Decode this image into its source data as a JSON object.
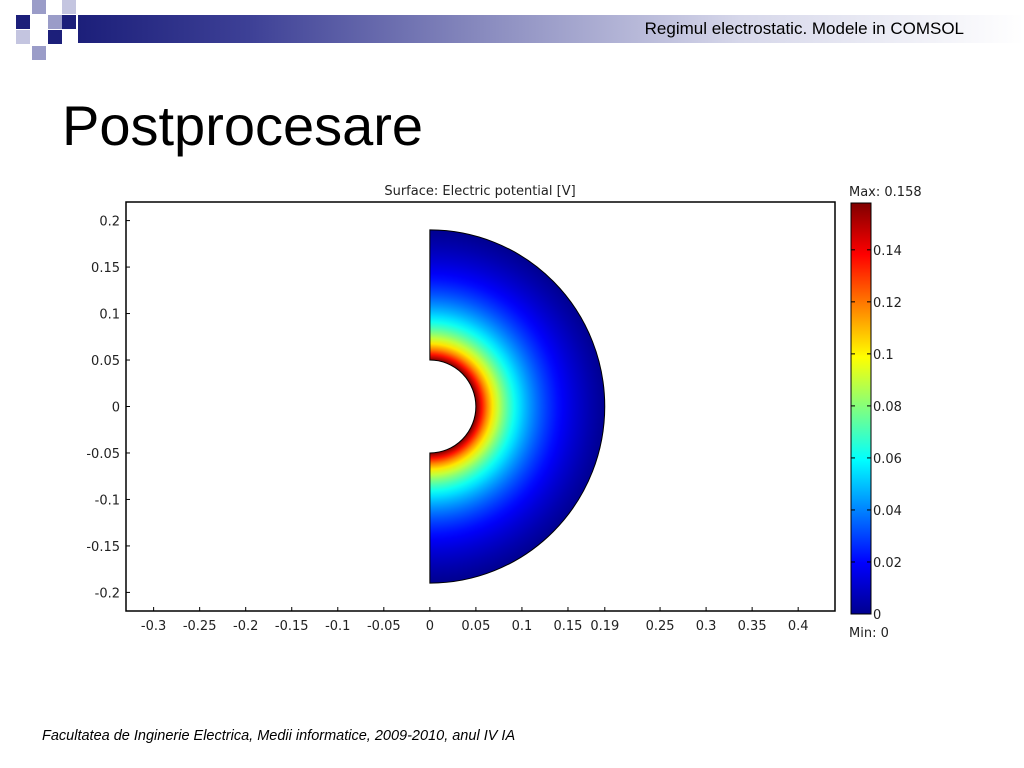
{
  "slide": {
    "header": "Regimul electrostatic. Modele in COMSOL",
    "title": "Postprocesare",
    "footer": "Facultatea de Inginerie Electrica, Medii informatice, 2009-2010, anul IV IA"
  },
  "chart_data": {
    "type": "heatmap",
    "title": "Surface: Electric potential [V]",
    "quantity": "Electric potential",
    "unit": "V",
    "xlim": [
      -0.33,
      0.44
    ],
    "ylim": [
      -0.22,
      0.22
    ],
    "x_ticks": [
      -0.3,
      -0.25,
      -0.2,
      -0.15,
      -0.1,
      -0.05,
      0,
      0.05,
      0.1,
      0.15,
      0.19,
      0.25,
      0.3,
      0.35,
      0.4
    ],
    "x_tick_labels": [
      "-0.3",
      "-0.25",
      "-0.2",
      "-0.15",
      "-0.1",
      "-0.05",
      "0",
      "0.05",
      "0.1",
      "0.15",
      "0.19",
      "0.25",
      "0.3",
      "0.35",
      "0.4"
    ],
    "y_ticks": [
      0.2,
      0.15,
      0.1,
      0.05,
      0,
      -0.05,
      -0.1,
      -0.15,
      -0.2
    ],
    "y_tick_labels": [
      "0.2",
      "0.15",
      "0.1",
      "0.05",
      "0",
      "-0.05",
      "-0.1",
      "-0.15",
      "-0.2"
    ],
    "domain": {
      "shape": "half-annulus",
      "inner_radius": 0.05,
      "outer_radius": 0.19,
      "center": [
        0,
        0
      ]
    },
    "colorbar": {
      "colormap": "jet",
      "max_label": "Max: 0.158",
      "min_label": "Min: 0",
      "max": 0.158,
      "min": 0,
      "ticks": [
        0,
        0.02,
        0.04,
        0.06,
        0.08,
        0.1,
        0.12,
        0.14
      ],
      "tick_labels": [
        "0",
        "0.02",
        "0.04",
        "0.06",
        "0.08",
        "0.1",
        "0.12",
        "0.14"
      ]
    },
    "colors": {
      "jet": [
        "#00008f",
        "#0000ff",
        "#0080ff",
        "#00ffff",
        "#80ff80",
        "#ffff00",
        "#ff8000",
        "#ff0000",
        "#800000"
      ],
      "header_dark": "#1c1f7a",
      "header_light": "#9a9cc8"
    }
  }
}
